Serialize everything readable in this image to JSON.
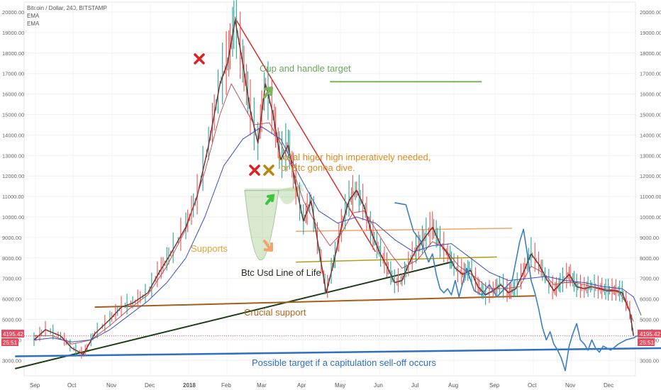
{
  "header": {
    "title": "Bitcoin / Dollar, 240, BITSTAMP",
    "indicators": [
      "EMA",
      "EMA"
    ]
  },
  "price_tags": {
    "left_price": "4195.42",
    "left_timer": "25:51",
    "right_price": "4195.42",
    "right_timer": "25:51"
  },
  "annotations": {
    "cup_target": "Cup and handle target",
    "local_high_1": "Local higer high imperatively needed,",
    "local_high_2": "or Btc gonna dive.",
    "supports": "Supports",
    "line_of_life": "Btc Usd Line of Life",
    "crucial": "Crucial support",
    "capitulation": "Possible target if a capitulation sell-off occurs"
  },
  "chart_data": {
    "type": "line",
    "title": "Bitcoin / Dollar, 240, BITSTAMP",
    "ylim": [
      2300,
      20300
    ],
    "y_ticks": [
      "20000.00",
      "19000.00",
      "18000.00",
      "17000.00",
      "16000.00",
      "15000.00",
      "14000.00",
      "13000.00",
      "12000.00",
      "11000.00",
      "10000.00",
      "9000.00",
      "8000.00",
      "7000.00",
      "6000.00",
      "5000.00",
      "4000.00",
      "3000.00"
    ],
    "x_ticks": [
      "Sep",
      "Oct",
      "Nov",
      "Dec",
      "2018",
      "Feb",
      "Mar",
      "Apr",
      "May",
      "Jun",
      "Jul",
      "Aug",
      "Sep",
      "Oct",
      "Nov",
      "Dec"
    ],
    "colors": {
      "price": "#7a2a2a",
      "ema_fast": "#c0404a",
      "ema_slow": "#3b4fb8",
      "projection": "#3a7fc4",
      "up": "#26a69a",
      "down": "#ef5350"
    },
    "series": [
      {
        "values": [
          [
            0,
            4000
          ],
          [
            0.3,
            4500
          ],
          [
            0.7,
            4200
          ],
          [
            1,
            3600
          ],
          [
            1.3,
            3300
          ],
          [
            1.6,
            4300
          ],
          [
            2,
            5000
          ],
          [
            2.3,
            5600
          ],
          [
            2.6,
            5800
          ],
          [
            3,
            6300
          ],
          [
            3.3,
            7300
          ],
          [
            3.6,
            8200
          ],
          [
            4,
            9500
          ],
          [
            4.3,
            11000
          ],
          [
            4.6,
            13500
          ],
          [
            4.9,
            16500
          ],
          [
            5.1,
            17500
          ],
          [
            5.3,
            19600
          ],
          [
            5.5,
            17500
          ],
          [
            5.7,
            15200
          ],
          [
            5.9,
            13600
          ],
          [
            6.1,
            16500
          ],
          [
            6.3,
            15000
          ],
          [
            6.5,
            12800
          ],
          [
            6.7,
            13500
          ],
          [
            6.9,
            11500
          ],
          [
            7.1,
            9800
          ],
          [
            7.3,
            10800
          ],
          [
            7.5,
            8500
          ],
          [
            7.7,
            6300
          ],
          [
            7.9,
            7800
          ],
          [
            8.1,
            9500
          ],
          [
            8.3,
            10800
          ],
          [
            8.5,
            11300
          ],
          [
            8.7,
            10500
          ],
          [
            8.9,
            9200
          ],
          [
            9.1,
            8300
          ],
          [
            9.3,
            7600
          ],
          [
            9.5,
            6800
          ],
          [
            9.7,
            6900
          ],
          [
            9.9,
            7800
          ],
          [
            10.1,
            8500
          ],
          [
            10.3,
            9000
          ],
          [
            10.5,
            9500
          ],
          [
            10.7,
            8700
          ],
          [
            10.9,
            8200
          ],
          [
            11.1,
            7500
          ],
          [
            11.3,
            7200
          ],
          [
            11.5,
            7400
          ],
          [
            11.7,
            6600
          ],
          [
            11.9,
            6200
          ],
          [
            12.1,
            6400
          ],
          [
            12.3,
            6700
          ],
          [
            12.5,
            6300
          ],
          [
            12.7,
            6500
          ],
          [
            12.9,
            7300
          ],
          [
            13.1,
            8200
          ],
          [
            13.3,
            7700
          ],
          [
            13.5,
            7000
          ],
          [
            13.7,
            6400
          ],
          [
            13.9,
            6800
          ],
          [
            14.1,
            7200
          ],
          [
            14.3,
            6600
          ],
          [
            14.5,
            6500
          ],
          [
            14.7,
            6600
          ],
          [
            14.9,
            6500
          ],
          [
            15.1,
            6400
          ],
          [
            15.3,
            6400
          ],
          [
            15.5,
            6300
          ],
          [
            15.7,
            5400
          ],
          [
            15.8,
            4200
          ]
        ]
      },
      {
        "values": [
          [
            0,
            4200
          ],
          [
            0.5,
            4200
          ],
          [
            1,
            3800
          ],
          [
            1.5,
            4000
          ],
          [
            2,
            4700
          ],
          [
            2.5,
            5500
          ],
          [
            3,
            6200
          ],
          [
            3.5,
            7600
          ],
          [
            4,
            9400
          ],
          [
            4.5,
            12200
          ],
          [
            4.9,
            15000
          ],
          [
            5.2,
            16500
          ],
          [
            5.5,
            15500
          ],
          [
            5.8,
            14500
          ],
          [
            6.2,
            14600
          ],
          [
            6.5,
            13600
          ],
          [
            6.8,
            12400
          ],
          [
            7.1,
            10800
          ],
          [
            7.5,
            9400
          ],
          [
            7.8,
            8600
          ],
          [
            8.1,
            9200
          ],
          [
            8.4,
            10200
          ],
          [
            8.7,
            10300
          ],
          [
            9,
            9400
          ],
          [
            9.4,
            8200
          ],
          [
            9.7,
            7500
          ],
          [
            10.1,
            7900
          ],
          [
            10.5,
            8800
          ],
          [
            10.8,
            8500
          ],
          [
            11.2,
            7600
          ],
          [
            11.6,
            7100
          ],
          [
            12,
            6500
          ],
          [
            12.4,
            6500
          ],
          [
            12.8,
            6600
          ],
          [
            13.1,
            7600
          ],
          [
            13.4,
            7300
          ],
          [
            13.7,
            6700
          ],
          [
            14,
            6800
          ],
          [
            14.3,
            6800
          ],
          [
            14.7,
            6600
          ],
          [
            15,
            6500
          ],
          [
            15.4,
            6400
          ],
          [
            15.6,
            5800
          ],
          [
            15.8,
            4900
          ]
        ]
      },
      {
        "values": [
          [
            0,
            4000
          ],
          [
            0.5,
            4100
          ],
          [
            1,
            3900
          ],
          [
            1.5,
            4000
          ],
          [
            2,
            4500
          ],
          [
            2.5,
            5200
          ],
          [
            3,
            5900
          ],
          [
            3.5,
            6800
          ],
          [
            4,
            8000
          ],
          [
            4.5,
            10000
          ],
          [
            5,
            12500
          ],
          [
            5.5,
            13800
          ],
          [
            6,
            14400
          ],
          [
            6.5,
            13800
          ],
          [
            7,
            12000
          ],
          [
            7.5,
            10300
          ],
          [
            8,
            9700
          ],
          [
            8.5,
            10000
          ],
          [
            9,
            9700
          ],
          [
            9.5,
            8900
          ],
          [
            10,
            8300
          ],
          [
            10.5,
            8600
          ],
          [
            11,
            8700
          ],
          [
            11.5,
            8000
          ],
          [
            12,
            7300
          ],
          [
            12.5,
            6900
          ],
          [
            13,
            7000
          ],
          [
            13.5,
            7100
          ],
          [
            14,
            6900
          ],
          [
            14.5,
            6800
          ],
          [
            15,
            6600
          ],
          [
            15.5,
            6500
          ],
          [
            15.8,
            6100
          ],
          [
            16,
            5200
          ]
        ]
      },
      {
        "values": [
          [
            9.5,
            10700
          ],
          [
            9.8,
            10600
          ],
          [
            10,
            9300
          ],
          [
            10.2,
            8800
          ],
          [
            10.4,
            7800
          ],
          [
            10.5,
            8200
          ],
          [
            10.6,
            7200
          ],
          [
            10.7,
            6500
          ],
          [
            10.8,
            6300
          ],
          [
            10.9,
            6500
          ],
          [
            11,
            6200
          ],
          [
            11.1,
            6900
          ],
          [
            11.2,
            6100
          ],
          [
            11.4,
            7500
          ],
          [
            11.6,
            6400
          ],
          [
            11.8,
            6200
          ],
          [
            12,
            6700
          ],
          [
            12.2,
            6100
          ],
          [
            12.4,
            6500
          ],
          [
            12.6,
            6900
          ],
          [
            12.8,
            8800
          ],
          [
            12.9,
            9400
          ],
          [
            13.0,
            8200
          ],
          [
            13.1,
            6900
          ],
          [
            13.2,
            6300
          ],
          [
            13.3,
            5500
          ],
          [
            13.4,
            4600
          ],
          [
            13.5,
            4000
          ],
          [
            13.6,
            4400
          ],
          [
            13.7,
            3800
          ],
          [
            13.8,
            3500
          ],
          [
            13.9,
            3100
          ],
          [
            14,
            2500
          ],
          [
            14.1,
            3700
          ],
          [
            14.2,
            4300
          ],
          [
            14.3,
            4800
          ],
          [
            14.4,
            4000
          ],
          [
            14.5,
            3800
          ],
          [
            14.6,
            3500
          ],
          [
            14.7,
            4000
          ],
          [
            14.8,
            3600
          ],
          [
            14.9,
            3400
          ],
          [
            15.0,
            3700
          ],
          [
            15.2,
            3500
          ],
          [
            15.4,
            3800
          ],
          [
            15.6,
            4000
          ],
          [
            15.8,
            4100
          ],
          [
            16,
            4300
          ],
          [
            16.3,
            4500
          ]
        ]
      }
    ],
    "trendlines": [
      {
        "from": [
          5.3,
          19700
        ],
        "to": [
          9.0,
          8300
        ],
        "color": "#d32f2f",
        "width": 1.5
      },
      {
        "from": [
          -0.5,
          2600
        ],
        "to": [
          11.0,
          7800
        ],
        "color": "#1b3d14",
        "width": 2
      },
      {
        "from": [
          1.6,
          5600
        ],
        "to": [
          13.2,
          6150
        ],
        "color": "#a65f1a",
        "width": 2
      },
      {
        "from": [
          -0.5,
          3200
        ],
        "to": [
          16.6,
          3600
        ],
        "color": "#2e6fc4",
        "width": 2.5
      },
      {
        "from": [
          6.9,
          7800
        ],
        "to": [
          12.2,
          8050
        ],
        "color": "#b59d10",
        "width": 1.5
      },
      {
        "from": [
          6.9,
          9300
        ],
        "to": [
          12.6,
          9450
        ],
        "color": "#f2a46a",
        "width": 1.5
      },
      {
        "from": [
          7.8,
          16600
        ],
        "to": [
          11.8,
          16600
        ],
        "color": "#7cb35a",
        "width": 2
      }
    ]
  }
}
